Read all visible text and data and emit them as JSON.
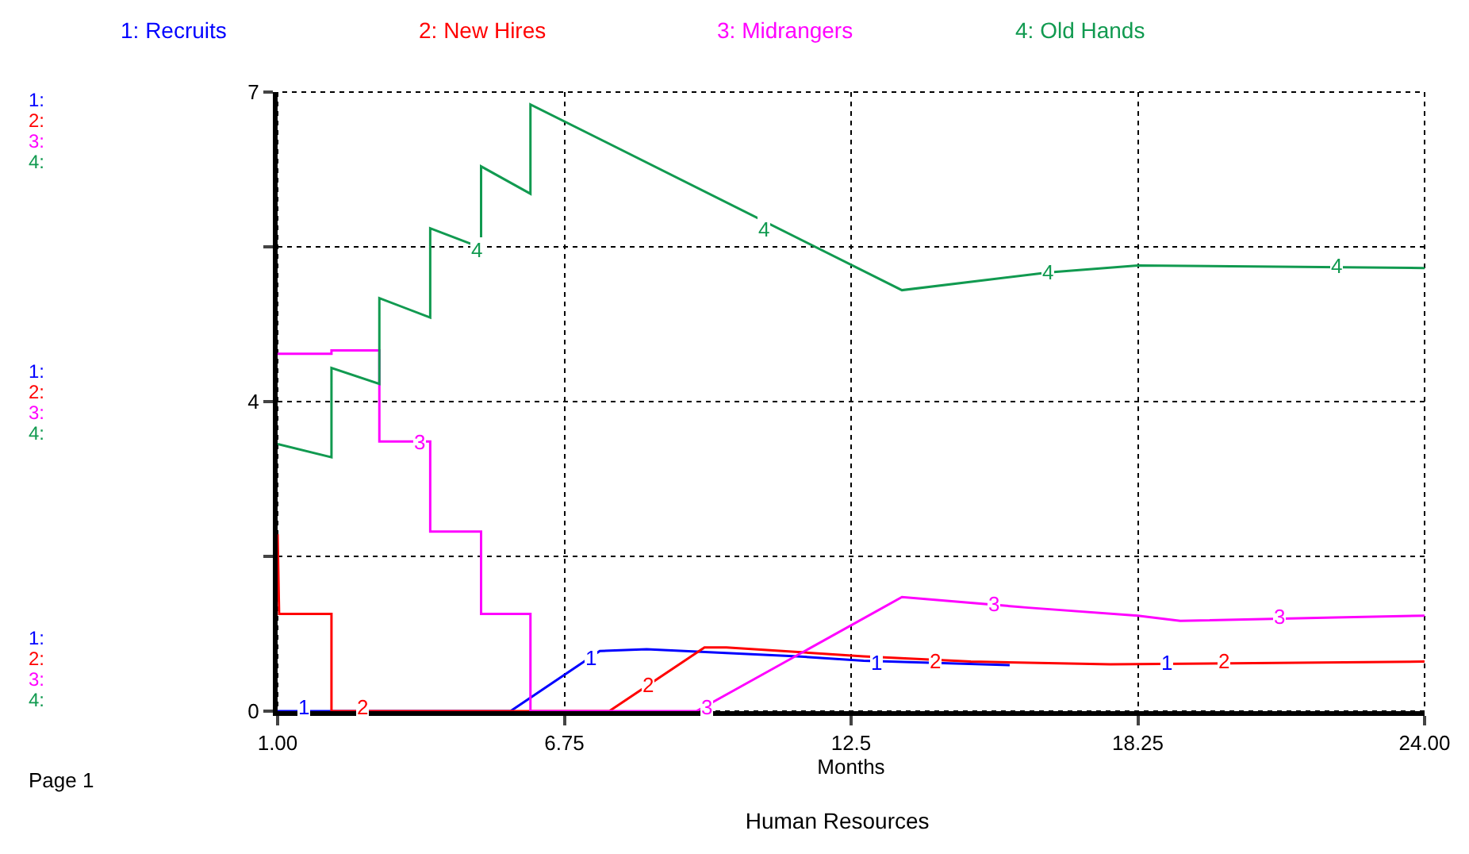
{
  "chart_data": {
    "type": "line",
    "title": "Human Resources",
    "xlabel": "Months",
    "xlim": [
      1,
      24
    ],
    "xticks": [
      {
        "value": 1,
        "label": "1.00"
      },
      6.75,
      12.5,
      18.25,
      {
        "value": 24,
        "label": "24.00"
      }
    ],
    "ylim": [
      0,
      7
    ],
    "yticks": [
      0,
      {
        "value": 1.75,
        "label": null
      },
      {
        "value": 3.5,
        "label": "4"
      },
      {
        "value": 5.25,
        "label": null
      },
      7
    ],
    "grid": true,
    "legend": "top",
    "line_style": "solid",
    "marker": "none",
    "series": [
      {
        "name": "1: Recruits",
        "color": "#0000ff",
        "x": [
          1,
          5.67,
          7.46,
          8.4,
          11.42,
          12.75,
          15.68
        ],
        "values": [
          0,
          0,
          0.68,
          0.7,
          0.62,
          0.57,
          0.52
        ]
      },
      {
        "name": "2: New Hires",
        "color": "#ff0000",
        "x": [
          1,
          1.03,
          2.08,
          2.08,
          7.65,
          9.56,
          10,
          12.75,
          14.9,
          17.7,
          24
        ],
        "values": [
          2.0,
          1.1,
          1.1,
          0,
          0,
          0.72,
          0.72,
          0.62,
          0.56,
          0.53,
          0.56
        ]
      },
      {
        "name": "3: Midrangers",
        "color": "#ff00ff",
        "x": [
          1,
          2.08,
          2.08,
          3.04,
          3.04,
          4.06,
          4.06,
          5.08,
          5.08,
          6.07,
          6.07,
          9.4,
          13.52,
          16.05,
          18.25,
          19.1,
          22.2,
          24
        ],
        "values": [
          4.04,
          4.04,
          4.08,
          4.08,
          3.05,
          3.05,
          2.03,
          2.03,
          1.1,
          1.1,
          0,
          0,
          1.29,
          1.17,
          1.08,
          1.02,
          1.06,
          1.08
        ]
      },
      {
        "name": "4: Old Hands",
        "color": "#119a50",
        "x": [
          1,
          2.08,
          2.08,
          3.04,
          3.04,
          4.06,
          4.06,
          5.08,
          5.08,
          6.07,
          6.07,
          13.52,
          16.46,
          18.25,
          24
        ],
        "values": [
          3.02,
          2.87,
          3.88,
          3.7,
          4.67,
          4.45,
          5.46,
          5.24,
          6.16,
          5.85,
          6.86,
          4.76,
          4.96,
          5.04,
          5.01
        ]
      }
    ],
    "annotations": [
      {
        "text": "1",
        "x": 1.53,
        "y": 0.04
      },
      {
        "text": "1",
        "x": 7.28,
        "y": 0.61
      },
      {
        "text": "1",
        "x": 13.02,
        "y": 0.54
      },
      {
        "text": "1",
        "x": 18.84,
        "y": 0.54
      },
      {
        "text": "2",
        "x": 2.7,
        "y": 0.04
      },
      {
        "text": "2",
        "x": 8.42,
        "y": 0.29
      },
      {
        "text": "2",
        "x": 14.17,
        "y": 0.57
      },
      {
        "text": "2",
        "x": 19.98,
        "y": 0.57
      },
      {
        "text": "3",
        "x": 3.84,
        "y": 3.05
      },
      {
        "text": "3",
        "x": 9.62,
        "y": 0.04
      },
      {
        "text": "3",
        "x": 15.35,
        "y": 1.22
      },
      {
        "text": "3",
        "x": 21.1,
        "y": 1.06
      },
      {
        "text": "4",
        "x": 4.99,
        "y": 5.22
      },
      {
        "text": "4",
        "x": 10.74,
        "y": 5.44
      },
      {
        "text": "4",
        "x": 16.46,
        "y": 4.96
      },
      {
        "text": "4",
        "x": 22.24,
        "y": 5.03
      },
      "1:",
      "2:",
      "3:",
      "4:",
      "1:",
      "2:",
      "3:",
      "4:",
      "1:",
      "2:",
      "3:",
      "4:",
      "Page 1"
    ]
  }
}
